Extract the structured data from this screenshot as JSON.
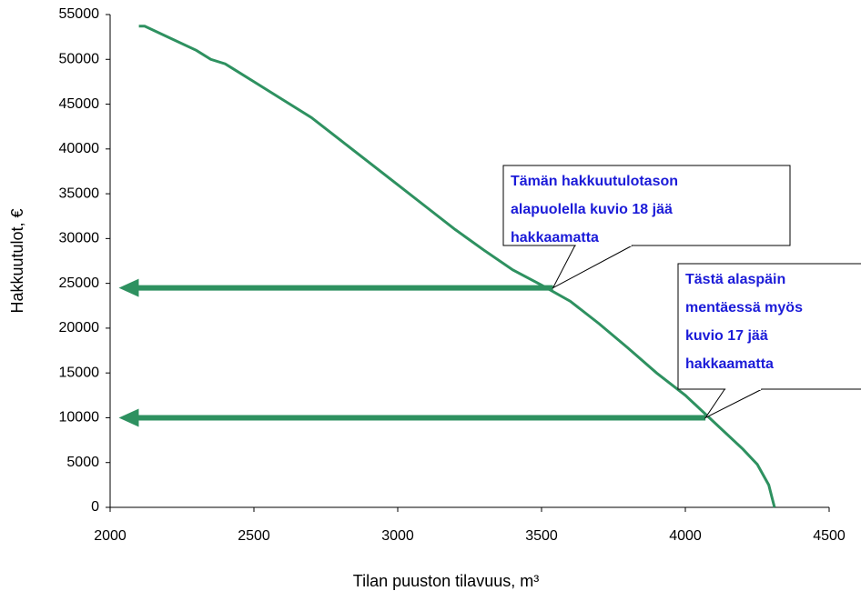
{
  "chart_data": {
    "type": "line",
    "xlabel": "Tilan puuston tilavuus, m³",
    "ylabel": "Hakkuutulot, €",
    "xlim": [
      2000,
      4500
    ],
    "xticks": [
      2000,
      2500,
      3000,
      3500,
      4000,
      4500
    ],
    "ylim": [
      0,
      55000
    ],
    "yticks": [
      0,
      5000,
      10000,
      15000,
      20000,
      25000,
      30000,
      35000,
      40000,
      45000,
      50000,
      55000
    ],
    "grid": false,
    "series": [
      {
        "color": "#2e9160",
        "x": [
          2100,
          2120,
          2200,
          2300,
          2350,
          2400,
          2500,
          2600,
          2700,
          2800,
          2900,
          3000,
          3100,
          3200,
          3300,
          3400,
          3500,
          3600,
          3700,
          3800,
          3900,
          4000,
          4100,
          4200,
          4250,
          4290,
          4310
        ],
        "values": [
          53700,
          53700,
          52500,
          51000,
          50000,
          49500,
          47500,
          45500,
          43500,
          41000,
          38500,
          36000,
          33500,
          31000,
          28700,
          26500,
          24800,
          23000,
          20500,
          17800,
          15000,
          12500,
          9500,
          6500,
          4800,
          2500,
          0
        ]
      }
    ],
    "arrows": [
      {
        "y": 24500,
        "x_from": 3540,
        "x_to": 2030
      },
      {
        "y": 10000,
        "x_from": 4070,
        "x_to": 2030
      }
    ],
    "annotations": [
      {
        "lines": [
          "Tämän hakkuutulotason",
          "alapuolella kuvio 18 jää",
          "hakkaamatta"
        ],
        "x": 3540,
        "y": 24500
      },
      {
        "lines": [
          "Tästä alaspäin",
          "mentäessä myös",
          "kuvio 17 jää",
          "hakkaamatta"
        ],
        "x": 4070,
        "y": 10000
      }
    ]
  }
}
